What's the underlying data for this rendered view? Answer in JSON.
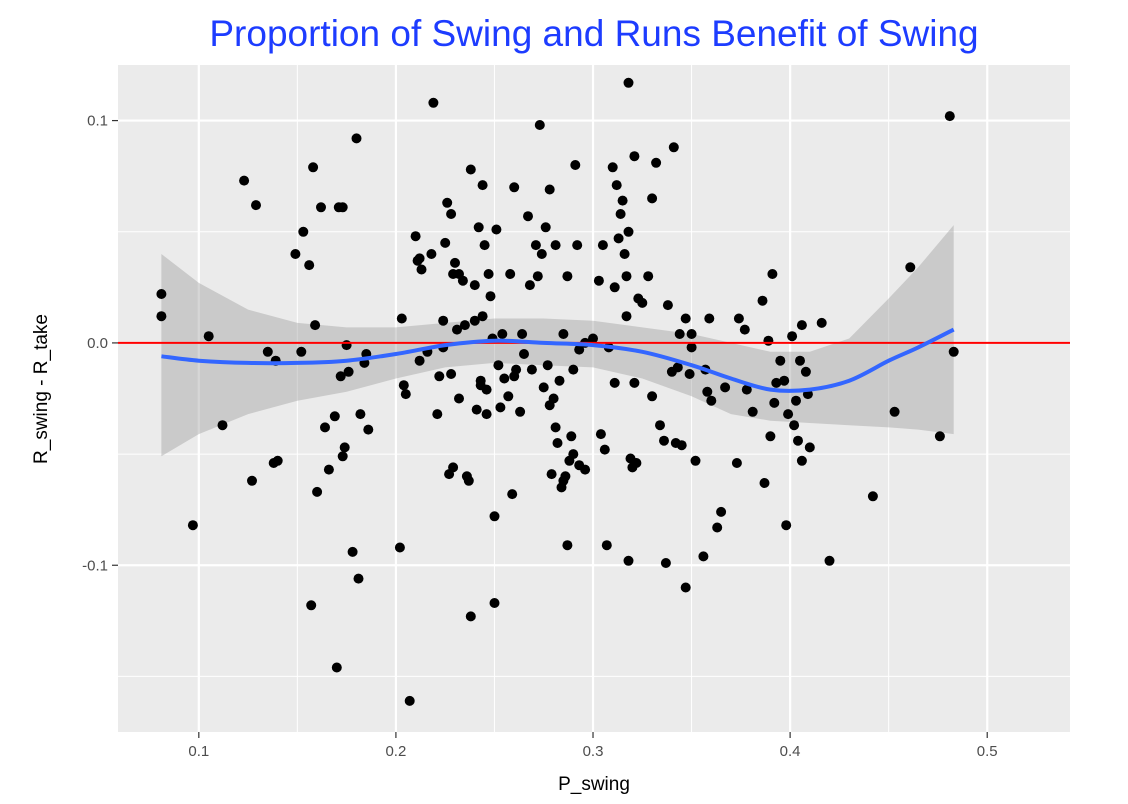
{
  "chart_data": {
    "type": "scatter",
    "title": "Proportion of Swing and Runs Benefit of Swing",
    "xlabel": "P_swing",
    "ylabel": "R_swing - R_take",
    "xlim": [
      0.059,
      0.542
    ],
    "ylim": [
      -0.175,
      0.125
    ],
    "x_ticks": [
      0.1,
      0.2,
      0.3,
      0.4,
      0.5
    ],
    "x_tick_labels": [
      "0.1",
      "0.2",
      "0.3",
      "0.4",
      "0.5"
    ],
    "x_minor_ticks": [
      0.15,
      0.25,
      0.35,
      0.45
    ],
    "y_ticks": [
      -0.1,
      0.0,
      0.1
    ],
    "y_tick_labels": [
      "-0.1",
      "0.0",
      "0.1"
    ],
    "y_minor_ticks": [
      -0.15,
      -0.05,
      0.05
    ],
    "grid": true,
    "hline": 0.0,
    "colors": {
      "panel": "#ebebeb",
      "grid": "#ffffff",
      "points": "#000000",
      "smooth": "#3366ff",
      "band": "#999999",
      "hline": "#ff0000",
      "title": "#1d3cff"
    },
    "points": [
      [
        0.081,
        0.022
      ],
      [
        0.081,
        0.012
      ],
      [
        0.097,
        -0.082
      ],
      [
        0.105,
        0.003
      ],
      [
        0.112,
        -0.037
      ],
      [
        0.123,
        0.073
      ],
      [
        0.127,
        -0.062
      ],
      [
        0.129,
        0.062
      ],
      [
        0.135,
        -0.004
      ],
      [
        0.138,
        -0.054
      ],
      [
        0.139,
        -0.008
      ],
      [
        0.14,
        -0.053
      ],
      [
        0.149,
        0.04
      ],
      [
        0.152,
        -0.004
      ],
      [
        0.153,
        0.05
      ],
      [
        0.156,
        0.035
      ],
      [
        0.157,
        -0.118
      ],
      [
        0.158,
        0.079
      ],
      [
        0.159,
        0.008
      ],
      [
        0.16,
        -0.067
      ],
      [
        0.162,
        0.061
      ],
      [
        0.164,
        -0.038
      ],
      [
        0.166,
        -0.057
      ],
      [
        0.169,
        -0.033
      ],
      [
        0.17,
        -0.146
      ],
      [
        0.171,
        0.061
      ],
      [
        0.172,
        -0.015
      ],
      [
        0.173,
        -0.051
      ],
      [
        0.173,
        0.061
      ],
      [
        0.174,
        -0.047
      ],
      [
        0.175,
        -0.001
      ],
      [
        0.176,
        -0.013
      ],
      [
        0.178,
        -0.094
      ],
      [
        0.18,
        0.092
      ],
      [
        0.181,
        -0.106
      ],
      [
        0.182,
        -0.032
      ],
      [
        0.184,
        -0.009
      ],
      [
        0.185,
        -0.005
      ],
      [
        0.186,
        -0.039
      ],
      [
        0.202,
        -0.092
      ],
      [
        0.203,
        0.011
      ],
      [
        0.204,
        -0.019
      ],
      [
        0.205,
        -0.023
      ],
      [
        0.207,
        -0.161
      ],
      [
        0.21,
        0.048
      ],
      [
        0.211,
        0.037
      ],
      [
        0.212,
        0.038
      ],
      [
        0.212,
        -0.008
      ],
      [
        0.213,
        0.033
      ],
      [
        0.216,
        -0.004
      ],
      [
        0.218,
        0.04
      ],
      [
        0.219,
        0.108
      ],
      [
        0.221,
        -0.032
      ],
      [
        0.222,
        -0.015
      ],
      [
        0.224,
        0.01
      ],
      [
        0.224,
        -0.002
      ],
      [
        0.225,
        0.045
      ],
      [
        0.226,
        0.063
      ],
      [
        0.227,
        -0.059
      ],
      [
        0.228,
        0.058
      ],
      [
        0.228,
        -0.014
      ],
      [
        0.229,
        0.031
      ],
      [
        0.229,
        -0.056
      ],
      [
        0.23,
        0.036
      ],
      [
        0.231,
        0.006
      ],
      [
        0.232,
        -0.025
      ],
      [
        0.232,
        0.031
      ],
      [
        0.234,
        0.028
      ],
      [
        0.235,
        0.008
      ],
      [
        0.236,
        -0.06
      ],
      [
        0.237,
        -0.062
      ],
      [
        0.238,
        0.078
      ],
      [
        0.238,
        -0.123
      ],
      [
        0.24,
        0.026
      ],
      [
        0.24,
        0.01
      ],
      [
        0.241,
        -0.03
      ],
      [
        0.242,
        0.052
      ],
      [
        0.243,
        -0.017
      ],
      [
        0.243,
        -0.019
      ],
      [
        0.244,
        0.071
      ],
      [
        0.244,
        0.012
      ],
      [
        0.245,
        0.044
      ],
      [
        0.246,
        -0.032
      ],
      [
        0.246,
        -0.021
      ],
      [
        0.247,
        0.031
      ],
      [
        0.248,
        0.021
      ],
      [
        0.249,
        0.002
      ],
      [
        0.25,
        -0.078
      ],
      [
        0.25,
        -0.117
      ],
      [
        0.251,
        0.051
      ],
      [
        0.252,
        -0.01
      ],
      [
        0.253,
        -0.029
      ],
      [
        0.254,
        0.004
      ],
      [
        0.255,
        -0.016
      ],
      [
        0.257,
        -0.024
      ],
      [
        0.258,
        0.031
      ],
      [
        0.259,
        -0.068
      ],
      [
        0.26,
        0.07
      ],
      [
        0.26,
        -0.015
      ],
      [
        0.261,
        -0.012
      ],
      [
        0.263,
        -0.031
      ],
      [
        0.264,
        0.004
      ],
      [
        0.265,
        -0.005
      ],
      [
        0.267,
        0.057
      ],
      [
        0.268,
        0.026
      ],
      [
        0.269,
        -0.012
      ],
      [
        0.271,
        0.044
      ],
      [
        0.272,
        0.03
      ],
      [
        0.273,
        0.098
      ],
      [
        0.274,
        0.04
      ],
      [
        0.275,
        -0.02
      ],
      [
        0.276,
        0.052
      ],
      [
        0.277,
        -0.01
      ],
      [
        0.278,
        -0.028
      ],
      [
        0.278,
        0.069
      ],
      [
        0.279,
        -0.059
      ],
      [
        0.28,
        -0.025
      ],
      [
        0.281,
        0.044
      ],
      [
        0.281,
        -0.038
      ],
      [
        0.282,
        -0.045
      ],
      [
        0.283,
        -0.017
      ],
      [
        0.284,
        -0.065
      ],
      [
        0.285,
        0.004
      ],
      [
        0.285,
        -0.062
      ],
      [
        0.286,
        -0.06
      ],
      [
        0.287,
        0.03
      ],
      [
        0.287,
        -0.091
      ],
      [
        0.288,
        -0.053
      ],
      [
        0.289,
        -0.042
      ],
      [
        0.29,
        -0.05
      ],
      [
        0.29,
        -0.012
      ],
      [
        0.291,
        0.08
      ],
      [
        0.292,
        0.044
      ],
      [
        0.293,
        -0.055
      ],
      [
        0.293,
        -0.003
      ],
      [
        0.296,
        0.0
      ],
      [
        0.296,
        -0.057
      ],
      [
        0.3,
        0.002
      ],
      [
        0.303,
        0.028
      ],
      [
        0.304,
        -0.041
      ],
      [
        0.305,
        0.044
      ],
      [
        0.306,
        -0.048
      ],
      [
        0.307,
        -0.091
      ],
      [
        0.308,
        -0.002
      ],
      [
        0.31,
        0.079
      ],
      [
        0.311,
        -0.018
      ],
      [
        0.311,
        0.025
      ],
      [
        0.312,
        0.071
      ],
      [
        0.313,
        0.047
      ],
      [
        0.314,
        0.058
      ],
      [
        0.315,
        0.064
      ],
      [
        0.316,
        0.04
      ],
      [
        0.317,
        0.012
      ],
      [
        0.317,
        0.03
      ],
      [
        0.318,
        0.05
      ],
      [
        0.318,
        -0.098
      ],
      [
        0.318,
        0.117
      ],
      [
        0.319,
        -0.052
      ],
      [
        0.32,
        -0.056
      ],
      [
        0.321,
        0.084
      ],
      [
        0.321,
        -0.018
      ],
      [
        0.322,
        -0.054
      ],
      [
        0.323,
        0.02
      ],
      [
        0.325,
        0.018
      ],
      [
        0.328,
        0.03
      ],
      [
        0.33,
        -0.024
      ],
      [
        0.33,
        0.065
      ],
      [
        0.332,
        0.081
      ],
      [
        0.334,
        -0.037
      ],
      [
        0.336,
        -0.044
      ],
      [
        0.337,
        -0.099
      ],
      [
        0.338,
        0.017
      ],
      [
        0.34,
        -0.013
      ],
      [
        0.341,
        0.088
      ],
      [
        0.342,
        -0.045
      ],
      [
        0.343,
        -0.011
      ],
      [
        0.344,
        0.004
      ],
      [
        0.345,
        -0.046
      ],
      [
        0.347,
        0.011
      ],
      [
        0.347,
        -0.11
      ],
      [
        0.349,
        -0.014
      ],
      [
        0.35,
        -0.002
      ],
      [
        0.35,
        0.004
      ],
      [
        0.352,
        -0.053
      ],
      [
        0.356,
        -0.096
      ],
      [
        0.357,
        -0.012
      ],
      [
        0.358,
        -0.022
      ],
      [
        0.359,
        0.011
      ],
      [
        0.36,
        -0.026
      ],
      [
        0.363,
        -0.083
      ],
      [
        0.365,
        -0.076
      ],
      [
        0.367,
        -0.02
      ],
      [
        0.373,
        -0.054
      ],
      [
        0.374,
        0.011
      ],
      [
        0.377,
        0.006
      ],
      [
        0.378,
        -0.021
      ],
      [
        0.381,
        -0.031
      ],
      [
        0.386,
        0.019
      ],
      [
        0.387,
        -0.063
      ],
      [
        0.389,
        0.001
      ],
      [
        0.39,
        -0.042
      ],
      [
        0.391,
        0.031
      ],
      [
        0.392,
        -0.027
      ],
      [
        0.393,
        -0.018
      ],
      [
        0.395,
        -0.008
      ],
      [
        0.397,
        -0.017
      ],
      [
        0.398,
        -0.082
      ],
      [
        0.399,
        -0.032
      ],
      [
        0.401,
        0.003
      ],
      [
        0.402,
        -0.037
      ],
      [
        0.403,
        -0.026
      ],
      [
        0.404,
        -0.044
      ],
      [
        0.405,
        -0.008
      ],
      [
        0.406,
        0.008
      ],
      [
        0.406,
        -0.053
      ],
      [
        0.408,
        -0.013
      ],
      [
        0.409,
        -0.023
      ],
      [
        0.41,
        -0.047
      ],
      [
        0.416,
        0.009
      ],
      [
        0.42,
        -0.098
      ],
      [
        0.442,
        -0.069
      ],
      [
        0.453,
        -0.031
      ],
      [
        0.461,
        0.034
      ],
      [
        0.476,
        -0.042
      ],
      [
        0.481,
        0.102
      ],
      [
        0.483,
        -0.004
      ]
    ],
    "smooth": {
      "x": [
        0.081,
        0.1,
        0.125,
        0.15,
        0.175,
        0.2,
        0.225,
        0.25,
        0.275,
        0.3,
        0.325,
        0.35,
        0.37,
        0.39,
        0.41,
        0.43,
        0.45,
        0.465,
        0.483
      ],
      "y": [
        -0.006,
        -0.008,
        -0.009,
        -0.009,
        -0.008,
        -0.005,
        -0.001,
        0.001,
        0.0,
        -0.001,
        -0.004,
        -0.01,
        -0.016,
        -0.021,
        -0.021,
        -0.017,
        -0.008,
        -0.002,
        0.006
      ],
      "ymin": [
        -0.051,
        -0.041,
        -0.032,
        -0.026,
        -0.022,
        -0.016,
        -0.011,
        -0.009,
        -0.01,
        -0.011,
        -0.016,
        -0.024,
        -0.032,
        -0.035,
        -0.036,
        -0.037,
        -0.038,
        -0.039,
        -0.041
      ],
      "ymax": [
        0.04,
        0.027,
        0.015,
        0.009,
        0.007,
        0.007,
        0.009,
        0.011,
        0.011,
        0.01,
        0.007,
        0.004,
        0.0,
        -0.004,
        -0.004,
        0.002,
        0.02,
        0.034,
        0.053
      ]
    }
  }
}
